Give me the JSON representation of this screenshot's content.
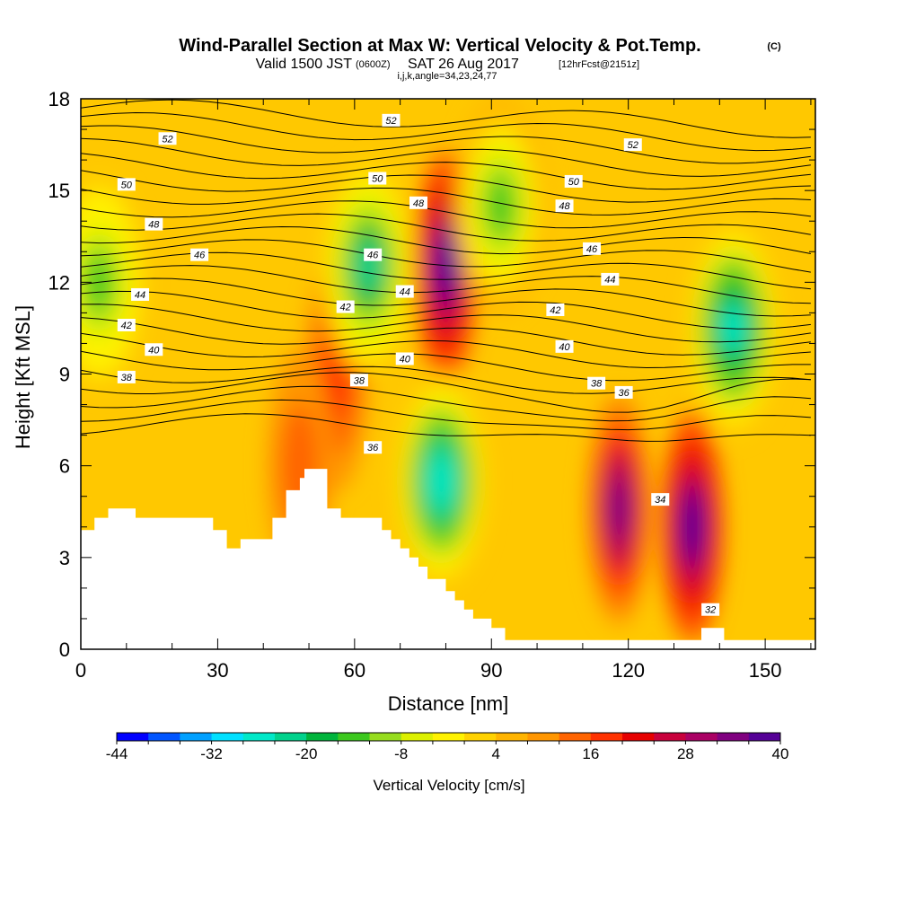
{
  "chart_data": {
    "type": "heatmap",
    "title_main": "Wind-Parallel Section at Max W: Vertical Velocity & Pot.Temp.",
    "title_tag": "(C)",
    "subtitle_main": "Valid 1500 JST",
    "subtitle_z": "(0600Z)",
    "subtitle_date": "SAT 26 Aug 2017",
    "subtitle_fcst": "[12hrFcst@2151z]",
    "subtitle_ijk": "i,j,k,angle=34,23,24,77",
    "xlabel": "Distance [nm]",
    "ylabel": "Height [Kft MSL]",
    "xlim": [
      0,
      161
    ],
    "ylim": [
      0,
      18
    ],
    "x_ticks": [
      "0",
      "30",
      "60",
      "90",
      "120",
      "150"
    ],
    "y_ticks": [
      "0",
      "3",
      "6",
      "9",
      "12",
      "15",
      "18"
    ],
    "colorbar": {
      "label": "Vertical Velocity [cm/s]",
      "tick_labels": [
        "-44",
        "-32",
        "-20",
        "-8",
        "4",
        "16",
        "28",
        "40"
      ],
      "min": -44,
      "max": 40,
      "colors": [
        "#0000ff",
        "#0055ff",
        "#00a0ff",
        "#00e0ff",
        "#00e8c8",
        "#00d28c",
        "#00b43c",
        "#3cc81e",
        "#96dc1e",
        "#dcf000",
        "#fff200",
        "#ffd200",
        "#ffb400",
        "#ff9600",
        "#ff6400",
        "#ff3200",
        "#e60000",
        "#c8003c",
        "#aa0064",
        "#800080",
        "#550096"
      ]
    },
    "velocity_features": [
      {
        "name": "updraft",
        "x": 80,
        "y": 12.5,
        "w": 40
      },
      {
        "name": "updraft",
        "x": 118,
        "y": 4.6,
        "w": 34
      },
      {
        "name": "updraft",
        "x": 134,
        "y": 4.0,
        "w": 40
      },
      {
        "name": "updraft",
        "x": 56,
        "y": 9.0,
        "w": 20
      },
      {
        "name": "updraft",
        "x": 48,
        "y": 6.0,
        "w": 16
      },
      {
        "name": "downdraft",
        "x": 79,
        "y": 5.5,
        "w": -28
      },
      {
        "name": "downdraft",
        "x": 143,
        "y": 10.5,
        "w": -26
      },
      {
        "name": "downdraft",
        "x": 63,
        "y": 12.5,
        "w": -22
      },
      {
        "name": "downdraft",
        "x": 4,
        "y": 12.0,
        "w": -16
      },
      {
        "name": "downdraft",
        "x": 92,
        "y": 14.5,
        "w": -14
      }
    ],
    "theta_contour_labels": [
      {
        "text": "52",
        "x": 19,
        "y": 16.7
      },
      {
        "text": "52",
        "x": 68,
        "y": 17.3
      },
      {
        "text": "52",
        "x": 121,
        "y": 16.5
      },
      {
        "text": "50",
        "x": 10,
        "y": 15.2
      },
      {
        "text": "50",
        "x": 65,
        "y": 15.4
      },
      {
        "text": "50",
        "x": 108,
        "y": 15.3
      },
      {
        "text": "48",
        "x": 16,
        "y": 13.9
      },
      {
        "text": "48",
        "x": 74,
        "y": 14.6
      },
      {
        "text": "48",
        "x": 106,
        "y": 14.5
      },
      {
        "text": "46",
        "x": 26,
        "y": 12.9
      },
      {
        "text": "46",
        "x": 64,
        "y": 12.9
      },
      {
        "text": "46",
        "x": 112,
        "y": 13.1
      },
      {
        "text": "44",
        "x": 13,
        "y": 11.6
      },
      {
        "text": "44",
        "x": 71,
        "y": 11.7
      },
      {
        "text": "44",
        "x": 116,
        "y": 12.1
      },
      {
        "text": "42",
        "x": 10,
        "y": 10.6
      },
      {
        "text": "42",
        "x": 58,
        "y": 11.2
      },
      {
        "text": "42",
        "x": 104,
        "y": 11.1
      },
      {
        "text": "40",
        "x": 16,
        "y": 9.8
      },
      {
        "text": "40",
        "x": 71,
        "y": 9.5
      },
      {
        "text": "40",
        "x": 106,
        "y": 9.9
      },
      {
        "text": "38",
        "x": 10,
        "y": 8.9
      },
      {
        "text": "38",
        "x": 61,
        "y": 8.8
      },
      {
        "text": "38",
        "x": 113,
        "y": 8.7
      },
      {
        "text": "36",
        "x": 119,
        "y": 8.4
      },
      {
        "text": "36",
        "x": 64,
        "y": 6.6
      },
      {
        "text": "34",
        "x": 127,
        "y": 4.9
      },
      {
        "text": "32",
        "x": 138,
        "y": 1.3
      }
    ],
    "terrain_profile": [
      [
        0,
        3.9
      ],
      [
        3,
        3.9
      ],
      [
        3,
        4.3
      ],
      [
        6,
        4.3
      ],
      [
        6,
        4.6
      ],
      [
        12,
        4.6
      ],
      [
        12,
        4.3
      ],
      [
        29,
        4.3
      ],
      [
        29,
        3.9
      ],
      [
        32,
        3.9
      ],
      [
        32,
        3.3
      ],
      [
        35,
        3.3
      ],
      [
        35,
        3.6
      ],
      [
        42,
        3.6
      ],
      [
        42,
        4.3
      ],
      [
        45,
        4.3
      ],
      [
        45,
        5.2
      ],
      [
        48,
        5.2
      ],
      [
        48,
        5.6
      ],
      [
        49,
        5.6
      ],
      [
        49,
        5.9
      ],
      [
        54,
        5.9
      ],
      [
        54,
        4.6
      ],
      [
        57,
        4.6
      ],
      [
        57,
        4.3
      ],
      [
        66,
        4.3
      ],
      [
        66,
        3.9
      ],
      [
        68,
        3.9
      ],
      [
        68,
        3.6
      ],
      [
        70,
        3.6
      ],
      [
        70,
        3.3
      ],
      [
        72,
        3.3
      ],
      [
        72,
        3.0
      ],
      [
        74,
        3.0
      ],
      [
        74,
        2.7
      ],
      [
        76,
        2.7
      ],
      [
        76,
        2.3
      ],
      [
        80,
        2.3
      ],
      [
        80,
        1.9
      ],
      [
        82,
        1.9
      ],
      [
        82,
        1.6
      ],
      [
        84,
        1.6
      ],
      [
        84,
        1.3
      ],
      [
        86,
        1.3
      ],
      [
        86,
        1.0
      ],
      [
        90,
        1.0
      ],
      [
        90,
        0.7
      ],
      [
        93,
        0.7
      ],
      [
        93,
        0.3
      ],
      [
        136,
        0.3
      ],
      [
        136,
        0.7
      ],
      [
        141,
        0.7
      ],
      [
        141,
        0.3
      ],
      [
        161,
        0.3
      ],
      [
        161,
        0
      ],
      [
        0,
        0
      ]
    ]
  }
}
